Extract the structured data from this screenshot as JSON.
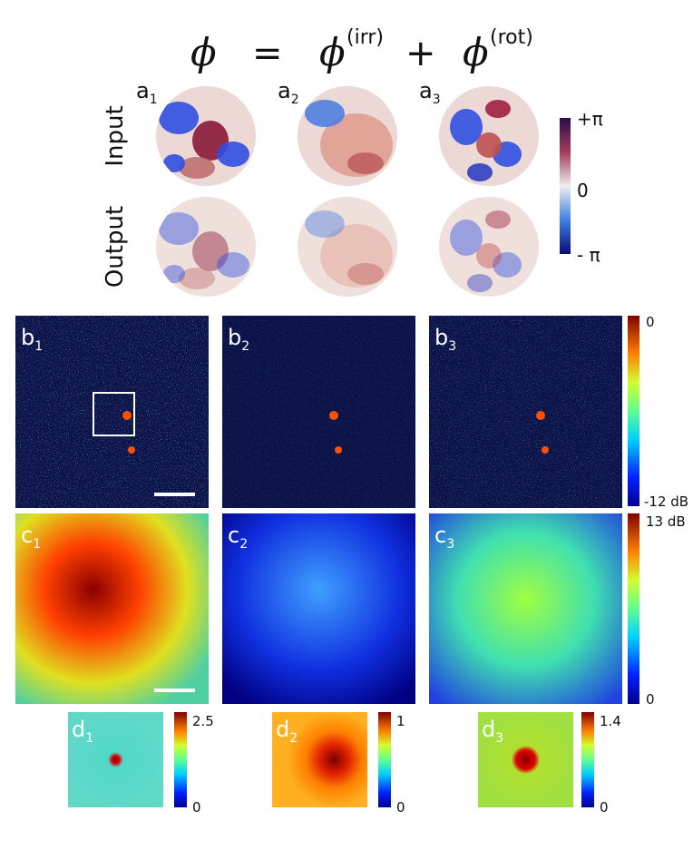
{
  "equation": {
    "lhs": "ϕ",
    "eq": "=",
    "t1": "ϕ",
    "t1_sup": "(irr)",
    "plus": "+",
    "t2": "ϕ",
    "t2_sup": "(rot)"
  },
  "row_labels": [
    "Input",
    "Output"
  ],
  "panels": {
    "a": [
      {
        "letter": "a",
        "sub": "1"
      },
      {
        "letter": "a",
        "sub": "2"
      },
      {
        "letter": "a",
        "sub": "3"
      }
    ],
    "b": [
      {
        "letter": "b",
        "sub": "1"
      },
      {
        "letter": "b",
        "sub": "2"
      },
      {
        "letter": "b",
        "sub": "3"
      }
    ],
    "c": [
      {
        "letter": "c",
        "sub": "1"
      },
      {
        "letter": "c",
        "sub": "2"
      },
      {
        "letter": "c",
        "sub": "3"
      }
    ],
    "d": [
      {
        "letter": "d",
        "sub": "1"
      },
      {
        "letter": "d",
        "sub": "2"
      },
      {
        "letter": "d",
        "sub": "3"
      }
    ]
  },
  "colorbars": {
    "phase": [
      "+π",
      "0",
      "- π"
    ],
    "b": [
      "0",
      "-12 dB"
    ],
    "c": [
      "13 dB",
      "0"
    ],
    "d": [
      [
        "2.5",
        "0"
      ],
      [
        "1",
        "0"
      ],
      [
        "1.4",
        "0"
      ]
    ]
  }
}
